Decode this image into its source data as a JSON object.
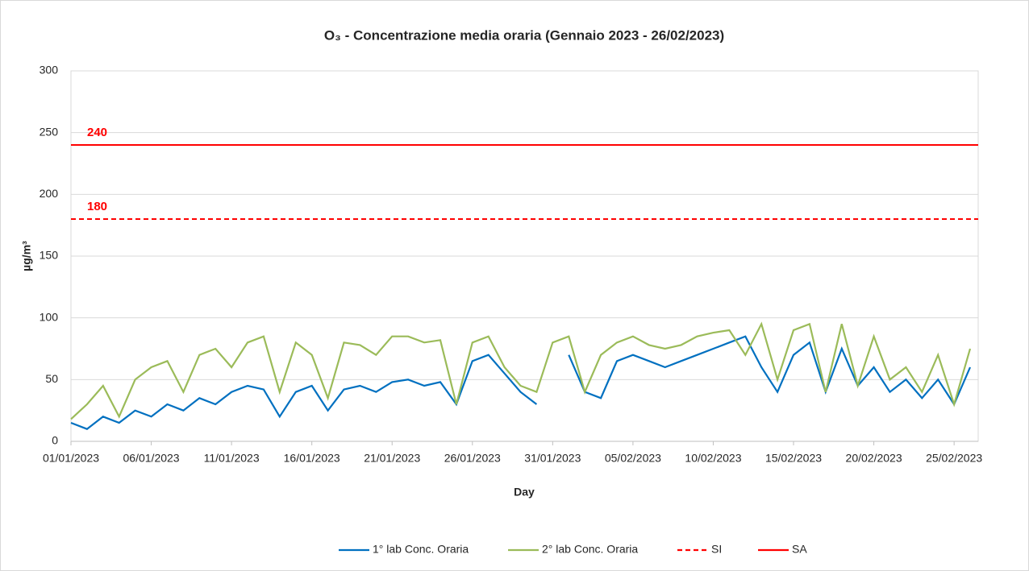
{
  "chart_data": {
    "type": "line",
    "title": "O₃ - Concentrazione media oraria (Gennaio 2023 - 26/02/2023)",
    "x_label": "Day",
    "y_label": "µg/m³",
    "x": [
      "01/01/2023",
      "02/01/2023",
      "03/01/2023",
      "04/01/2023",
      "05/01/2023",
      "06/01/2023",
      "07/01/2023",
      "08/01/2023",
      "09/01/2023",
      "10/01/2023",
      "11/01/2023",
      "12/01/2023",
      "13/01/2023",
      "14/01/2023",
      "15/01/2023",
      "16/01/2023",
      "17/01/2023",
      "18/01/2023",
      "19/01/2023",
      "20/01/2023",
      "21/01/2023",
      "22/01/2023",
      "23/01/2023",
      "24/01/2023",
      "25/01/2023",
      "26/01/2023",
      "27/01/2023",
      "28/01/2023",
      "29/01/2023",
      "30/01/2023",
      "31/01/2023",
      "01/02/2023",
      "02/02/2023",
      "03/02/2023",
      "04/02/2023",
      "05/02/2023",
      "06/02/2023",
      "07/02/2023",
      "08/02/2023",
      "09/02/2023",
      "10/02/2023",
      "11/02/2023",
      "12/02/2023",
      "13/02/2023",
      "14/02/2023",
      "15/02/2023",
      "16/02/2023",
      "17/02/2023",
      "18/02/2023",
      "19/02/2023",
      "20/02/2023",
      "21/02/2023",
      "22/02/2023",
      "23/02/2023",
      "24/02/2023",
      "25/02/2023",
      "26/02/2023"
    ],
    "series": [
      {
        "name": "1° lab Conc. Oraria",
        "color": "#0070c0",
        "values": [
          15,
          10,
          20,
          15,
          25,
          20,
          30,
          25,
          35,
          30,
          40,
          45,
          42,
          20,
          40,
          45,
          25,
          42,
          45,
          40,
          48,
          50,
          45,
          48,
          30,
          65,
          70,
          55,
          40,
          30,
          null,
          70,
          40,
          35,
          65,
          70,
          65,
          60,
          65,
          70,
          75,
          80,
          85,
          60,
          40,
          70,
          80,
          40,
          75,
          45,
          60,
          40,
          50,
          35,
          50,
          30,
          60
        ]
      },
      {
        "name": "2° lab Conc. Oraria",
        "color": "#9bbb59",
        "values": [
          18,
          30,
          45,
          20,
          50,
          60,
          65,
          40,
          70,
          75,
          60,
          80,
          85,
          40,
          80,
          70,
          35,
          80,
          78,
          70,
          85,
          85,
          80,
          82,
          30,
          80,
          85,
          60,
          45,
          40,
          80,
          85,
          40,
          70,
          80,
          85,
          78,
          75,
          78,
          85,
          88,
          90,
          70,
          95,
          50,
          90,
          95,
          40,
          95,
          45,
          85,
          50,
          60,
          40,
          70,
          30,
          75
        ]
      }
    ],
    "reference_lines": [
      {
        "name": "SI",
        "value": 180,
        "value_label": "180",
        "color": "#ff0000",
        "dashed": true
      },
      {
        "name": "SA",
        "value": 240,
        "value_label": "240",
        "color": "#ff0000",
        "dashed": false
      }
    ],
    "xlim": [
      "01/01/2023",
      "26/02/2023"
    ],
    "xticks": [
      "01/01/2023",
      "06/01/2023",
      "11/01/2023",
      "16/01/2023",
      "21/01/2023",
      "26/01/2023",
      "31/01/2023",
      "05/02/2023",
      "10/02/2023",
      "15/02/2023",
      "20/02/2023",
      "25/02/2023"
    ],
    "ylim": [
      0,
      300
    ],
    "yticks": [
      0,
      50,
      100,
      150,
      200,
      250,
      300
    ],
    "grid": true,
    "legend": "bottom"
  }
}
